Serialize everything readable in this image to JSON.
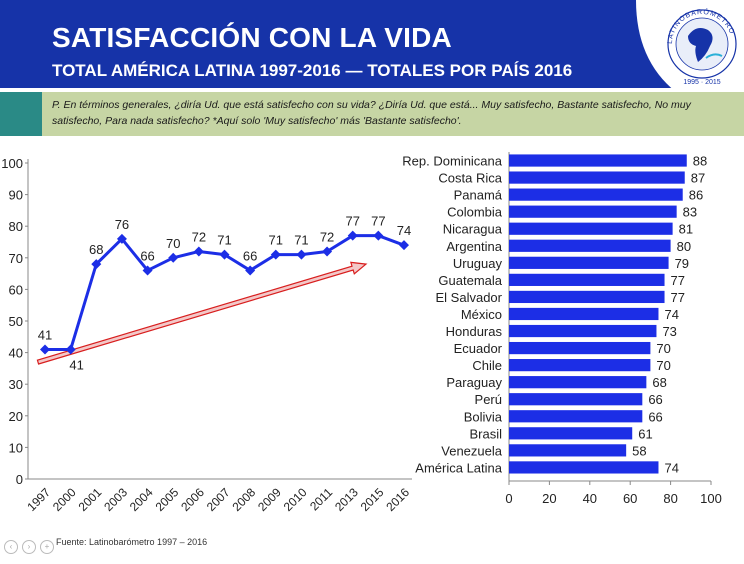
{
  "header": {
    "title": "SATISFACCIÓN CON LA VIDA",
    "subtitle": "TOTAL AMÉRICA LATINA 1997-2016 — TOTALES POR PAÍS 2016",
    "logo_text": "LATINOBARÓMETRO",
    "logo_years": "1995 · 2015"
  },
  "question": "P. En términos generales, ¿diría Ud. que está  satisfecho con su vida? ¿Diría Ud. que está... Muy satisfecho, Bastante satisfecho, No muy satisfecho, Para nada satisfecho? *Aquí solo 'Muy satisfecho' más 'Bastante satisfecho'.",
  "source": "Fuente: Latinobarómetro 1997 – 2016",
  "colors": {
    "header_bg": "#1633a8",
    "line": "#1c2ee6",
    "bar": "#1c2ee6",
    "trend_arrow": "#d81e1e",
    "question_bg": "#c6d5a4",
    "question_accent": "#2a8a86"
  },
  "chart_data": [
    {
      "type": "line",
      "x": [
        "1997",
        "2000",
        "2001",
        "2003",
        "2004",
        "2005",
        "2006",
        "2007",
        "2008",
        "2009",
        "2010",
        "2011",
        "2013",
        "2015",
        "2016"
      ],
      "values": [
        41,
        41,
        68,
        76,
        66,
        70,
        72,
        71,
        66,
        71,
        71,
        72,
        77,
        77,
        74
      ],
      "yticks": [
        "0",
        "10",
        "20",
        "30",
        "40",
        "50",
        "60",
        "70",
        "80",
        "90",
        "100"
      ],
      "ylim": [
        0,
        100
      ],
      "grid": false,
      "annotation": "upward trend arrow"
    },
    {
      "type": "bar",
      "orientation": "horizontal",
      "categories": [
        "Rep. Dominicana",
        "Costa Rica",
        "Panamá",
        "Colombia",
        "Nicaragua",
        "Argentina",
        "Uruguay",
        "Guatemala",
        "El Salvador",
        "México",
        "Honduras",
        "Ecuador",
        "Chile",
        "Paraguay",
        "Perú",
        "Bolivia",
        "Brasil",
        "Venezuela",
        "América Latina"
      ],
      "values": [
        88,
        87,
        86,
        83,
        81,
        80,
        79,
        77,
        77,
        74,
        73,
        70,
        70,
        68,
        66,
        66,
        61,
        58,
        74
      ],
      "xticks": [
        "0",
        "20",
        "40",
        "60",
        "80",
        "100"
      ],
      "xlim": [
        0,
        100
      ],
      "grid": false
    }
  ]
}
